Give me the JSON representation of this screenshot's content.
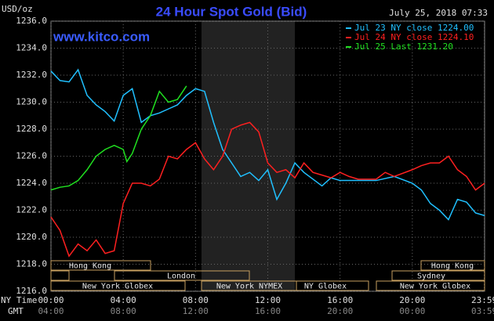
{
  "chart_data": {
    "type": "line",
    "title": "24 Hour Spot Gold (Bid)",
    "watermark": "www.kitco.com",
    "timestamp": "July 25, 2018 07:33",
    "y_unit": "USD/oz",
    "x_row_labels": [
      "NY Time",
      "GMT"
    ],
    "xlim": [
      0,
      24
    ],
    "xticks": [
      {
        "value": 0,
        "label": "00:00"
      },
      {
        "value": 4,
        "label": "04:00"
      },
      {
        "value": 8,
        "label": "08:00"
      },
      {
        "value": 12,
        "label": "12:00"
      },
      {
        "value": 16,
        "label": "16:00"
      },
      {
        "value": 20,
        "label": "20:00"
      },
      {
        "value": 23.98,
        "label": "23:59"
      }
    ],
    "gmt_tick_labels": [
      "04:00",
      "08:00",
      "12:00",
      "16:00",
      "20:00",
      "00:00",
      "03:59"
    ],
    "ylim": [
      1216,
      1236
    ],
    "yticks": [
      {
        "value": 1216,
        "label": "1216.0"
      },
      {
        "value": 1218,
        "label": "1218.0"
      },
      {
        "value": 1220,
        "label": "1220.0"
      },
      {
        "value": 1222,
        "label": "1222.0"
      },
      {
        "value": 1224,
        "label": "1224.0"
      },
      {
        "value": 1226,
        "label": "1226.0"
      },
      {
        "value": 1228,
        "label": "1228.0"
      },
      {
        "value": 1230,
        "label": "1230.0"
      },
      {
        "value": 1232,
        "label": "1232.0"
      },
      {
        "value": 1234,
        "label": "1234.0"
      },
      {
        "value": 1236,
        "label": "1236.0"
      }
    ],
    "grid": true,
    "markets": [
      "Hong Kong",
      "London",
      "New York Globex",
      "New York NYMEX",
      "NY Globex",
      "Hong Kong",
      "Sydney",
      "New York Globex"
    ],
    "series": [
      {
        "name": "Jul 23 NY close 1224.00",
        "color": "#20c0ff",
        "x": [
          0,
          0.5,
          1,
          1.5,
          2,
          2.5,
          3,
          3.5,
          4,
          4.5,
          5,
          5.5,
          6,
          6.5,
          7,
          7.5,
          8,
          8.5,
          9,
          9.5,
          10,
          10.5,
          11,
          11.5,
          12,
          12.5,
          13,
          13.5,
          14,
          14.5,
          15,
          15.5,
          16,
          17,
          18,
          19,
          20,
          20.5,
          21,
          21.5,
          22,
          22.5,
          23,
          23.5,
          24
        ],
        "values": [
          1232.3,
          1231.6,
          1231.5,
          1232.4,
          1230.5,
          1229.8,
          1229.3,
          1228.6,
          1230.5,
          1231,
          1228.5,
          1229,
          1229.2,
          1229.5,
          1229.8,
          1230.5,
          1231,
          1230.8,
          1228.5,
          1226.5,
          1225.5,
          1224.5,
          1224.8,
          1224.2,
          1225,
          1222.8,
          1224,
          1225.5,
          1224.8,
          1224.3,
          1223.8,
          1224.4,
          1224.2,
          1224.2,
          1224.2,
          1224.5,
          1224,
          1223.5,
          1222.5,
          1222,
          1221.3,
          1222.8,
          1222.6,
          1221.8,
          1221.6
        ]
      },
      {
        "name": "Jul 24 NY close 1224.10",
        "color": "#ff2020",
        "x": [
          0,
          0.5,
          1,
          1.5,
          2,
          2.5,
          3,
          3.5,
          4,
          4.5,
          5,
          5.5,
          6,
          6.5,
          7,
          7.5,
          8,
          8.5,
          9,
          9.5,
          10,
          10.5,
          11,
          11.5,
          12,
          12.5,
          13,
          13.5,
          14,
          14.5,
          15,
          15.5,
          16,
          16.5,
          17,
          18,
          18.5,
          19,
          20,
          20.5,
          21,
          21.5,
          22,
          22.5,
          23,
          23.5,
          24
        ],
        "values": [
          1221.5,
          1220.5,
          1218.6,
          1219.5,
          1219,
          1219.8,
          1218.8,
          1219,
          1222.5,
          1224,
          1224,
          1223.8,
          1224.3,
          1226,
          1225.8,
          1226.5,
          1227,
          1225.8,
          1225,
          1226,
          1228,
          1228.3,
          1228.5,
          1227.8,
          1225.5,
          1224.8,
          1225,
          1224.4,
          1225.5,
          1224.8,
          1224.6,
          1224.4,
          1224.8,
          1224.5,
          1224.3,
          1224.3,
          1224.8,
          1224.5,
          1225,
          1225.3,
          1225.5,
          1225.5,
          1226,
          1225,
          1224.5,
          1223.5,
          1224
        ]
      },
      {
        "name": "Jul 25 Last 1231.20",
        "color": "#20e020",
        "x": [
          0,
          0.5,
          1,
          1.5,
          2,
          2.5,
          3,
          3.5,
          4,
          4.2,
          4.5,
          5,
          5.5,
          6,
          6.5,
          7,
          7.5
        ],
        "values": [
          1223.5,
          1223.7,
          1223.8,
          1224.2,
          1225,
          1226,
          1226.5,
          1226.8,
          1226.5,
          1225.6,
          1226.2,
          1228,
          1229,
          1230.8,
          1230,
          1230.2,
          1231.2
        ]
      }
    ]
  }
}
